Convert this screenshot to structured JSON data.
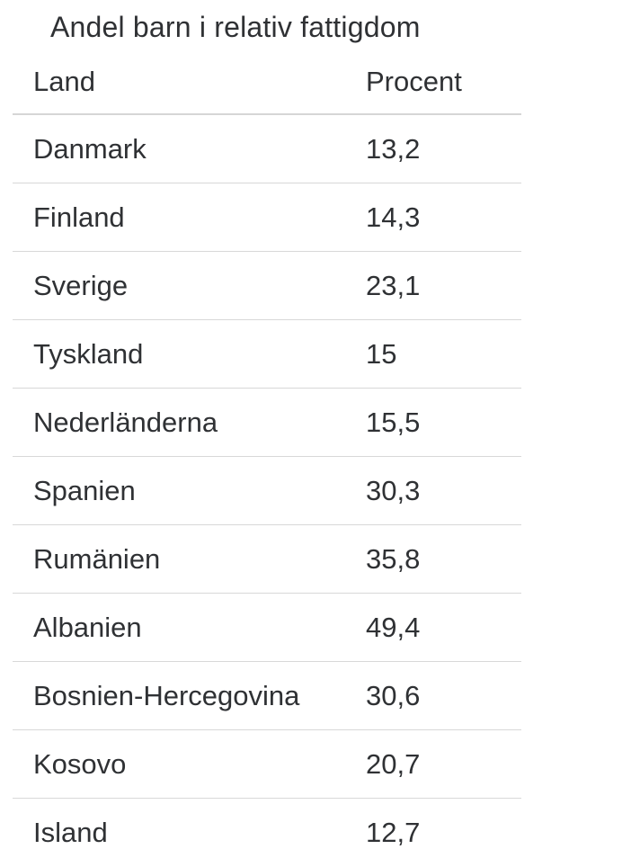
{
  "title": "Andel barn i relativ fattigdom",
  "table": {
    "headers": [
      "Land",
      "Procent"
    ],
    "rows": [
      {
        "country": "Danmark",
        "value": "13,2"
      },
      {
        "country": "Finland",
        "value": "14,3"
      },
      {
        "country": "Sverige",
        "value": "23,1"
      },
      {
        "country": "Tyskland",
        "value": "15"
      },
      {
        "country": "Nederländerna",
        "value": "15,5"
      },
      {
        "country": "Spanien",
        "value": "30,3"
      },
      {
        "country": "Rumänien",
        "value": "35,8"
      },
      {
        "country": "Albanien",
        "value": "49,4"
      },
      {
        "country": "Bosnien-Hercegovina",
        "value": "30,6"
      },
      {
        "country": "Kosovo",
        "value": "20,7"
      },
      {
        "country": "Island",
        "value": "12,7"
      }
    ]
  },
  "colors": {
    "text": "#2f3134",
    "divider": "#d8d8d8",
    "background": "#ffffff"
  }
}
